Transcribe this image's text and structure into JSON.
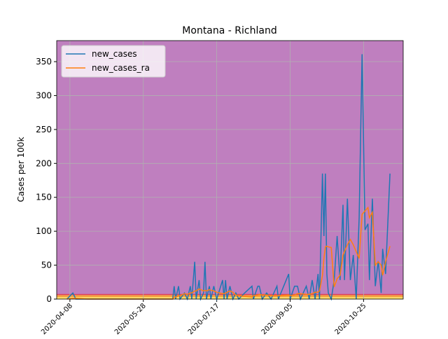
{
  "chart_data": {
    "type": "line",
    "title": "Montana - Richland",
    "ylabel": "Cases per 100k",
    "x": [
      "2020-04-06",
      "2020-04-10",
      "2020-04-12",
      "2020-04-20",
      "2020-06-17",
      "2020-06-18",
      "2020-06-19",
      "2020-06-21",
      "2020-06-22",
      "2020-06-25",
      "2020-06-27",
      "2020-06-29",
      "2020-06-30",
      "2020-07-02",
      "2020-07-03",
      "2020-07-05",
      "2020-07-06",
      "2020-07-08",
      "2020-07-09",
      "2020-07-10",
      "2020-07-12",
      "2020-07-13",
      "2020-07-15",
      "2020-07-17",
      "2020-07-21",
      "2020-07-22",
      "2020-07-23",
      "2020-07-24",
      "2020-07-26",
      "2020-07-28",
      "2020-07-30",
      "2020-08-01",
      "2020-08-05",
      "2020-08-10",
      "2020-08-11",
      "2020-08-14",
      "2020-08-15",
      "2020-08-17",
      "2020-08-20",
      "2020-08-23",
      "2020-08-27",
      "2020-08-28",
      "2020-09-04",
      "2020-09-05",
      "2020-09-08",
      "2020-09-10",
      "2020-09-12",
      "2020-09-16",
      "2020-09-18",
      "2020-09-20",
      "2020-09-22",
      "2020-09-24",
      "2020-09-25",
      "2020-09-27",
      "2020-09-28",
      "2020-09-29",
      "2020-09-30",
      "2020-10-01",
      "2020-10-03",
      "2020-10-05",
      "2020-10-07",
      "2020-10-09",
      "2020-10-11",
      "2020-10-12",
      "2020-10-14",
      "2020-10-16",
      "2020-10-18",
      "2020-10-20",
      "2020-10-22",
      "2020-10-24",
      "2020-10-26",
      "2020-10-28",
      "2020-10-29",
      "2020-10-31",
      "2020-11-02",
      "2020-11-04",
      "2020-11-06",
      "2020-11-07",
      "2020-11-09",
      "2020-11-12"
    ],
    "series": [
      {
        "name": "new_cases",
        "color": "#1f77b4",
        "values": [
          0,
          9,
          0,
          0,
          0,
          19,
          0,
          19,
          0,
          9,
          0,
          19,
          0,
          55,
          0,
          28,
          0,
          9,
          55,
          0,
          19,
          0,
          19,
          0,
          28,
          0,
          28,
          0,
          19,
          0,
          9,
          0,
          9,
          19,
          0,
          19,
          19,
          0,
          9,
          0,
          19,
          0,
          37,
          0,
          19,
          19,
          0,
          19,
          0,
          28,
          0,
          37,
          0,
          185,
          93,
          185,
          37,
          9,
          0,
          28,
          93,
          28,
          139,
          28,
          148,
          28,
          65,
          0,
          120,
          361,
          102,
          111,
          28,
          148,
          19,
          56,
          9,
          74,
          37,
          185
        ]
      },
      {
        "name": "new_cases_ra",
        "color": "#ff7f0e",
        "values": [
          0,
          1,
          1,
          0,
          0,
          3,
          3,
          5,
          5,
          8,
          7,
          9,
          9,
          12,
          12,
          15,
          14,
          12,
          13,
          12,
          14,
          13,
          12,
          10,
          8,
          8,
          9,
          10,
          12,
          10,
          6,
          5,
          4,
          3,
          5,
          6,
          7,
          6,
          6,
          5,
          5,
          5,
          6,
          5,
          6,
          8,
          8,
          7,
          7,
          8,
          10,
          10,
          12,
          35,
          60,
          77,
          78,
          77,
          76,
          18,
          30,
          35,
          65,
          70,
          80,
          88,
          80,
          70,
          60,
          125,
          130,
          135,
          120,
          128,
          50,
          55,
          50,
          35,
          55,
          78
        ]
      }
    ],
    "xlim": [
      "2020-03-30",
      "2020-11-21"
    ],
    "xticks": [
      "2020-04-08",
      "2020-05-28",
      "2020-07-17",
      "2020-09-05",
      "2020-10-25"
    ],
    "ylim": [
      0,
      381
    ],
    "yticks": [
      0,
      50,
      100,
      150,
      200,
      250,
      300,
      350
    ],
    "grid": true,
    "legend": "upper left",
    "background": "#bf7fbf",
    "bands": [
      {
        "from": 0,
        "to": 3,
        "color": "#ffe066"
      },
      {
        "from": 3,
        "to": 6,
        "color": "#f5a040"
      },
      {
        "from": 6,
        "to": 7.5,
        "color": "#e0405a"
      }
    ]
  }
}
